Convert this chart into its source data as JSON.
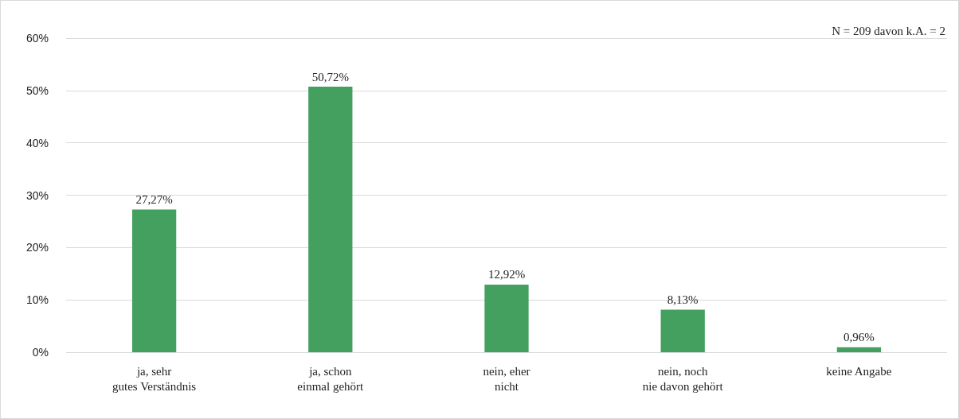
{
  "chart_data": {
    "type": "bar",
    "categories": [
      "ja, sehr\ngutes Verständnis",
      "ja, schon\neinmal gehört",
      "nein, eher\nnicht",
      "nein, noch\nnie davon gehört",
      "keine Angabe"
    ],
    "values": [
      27.27,
      50.72,
      12.92,
      8.13,
      0.96
    ],
    "value_labels": [
      "27,27%",
      "50,72%",
      "12,92%",
      "8,13%",
      "0,96%"
    ],
    "color": "#43a05f",
    "ylim": [
      0,
      60
    ],
    "yticks": [
      {
        "value": 0,
        "label": "0%"
      },
      {
        "value": 10,
        "label": "10%"
      },
      {
        "value": 20,
        "label": "20%"
      },
      {
        "value": 30,
        "label": "30%"
      },
      {
        "value": 40,
        "label": "40%"
      },
      {
        "value": 50,
        "label": "50%"
      },
      {
        "value": 60,
        "label": "60%"
      }
    ],
    "grid": "y",
    "annotations": [
      "N = 209 davon k.A. = 2"
    ]
  }
}
